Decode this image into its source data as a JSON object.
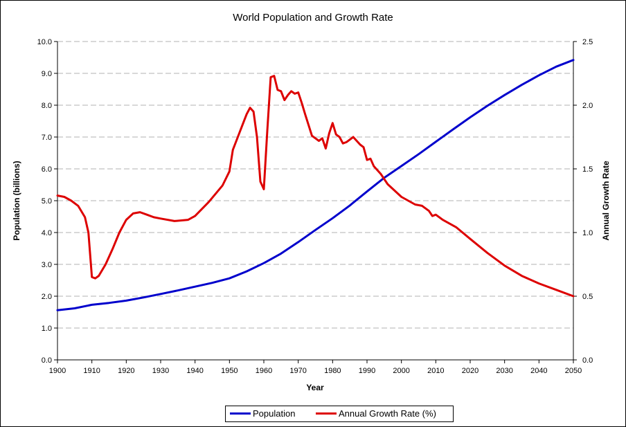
{
  "chart_data": {
    "type": "line",
    "title": "World Population and Growth Rate",
    "xlabel": "Year",
    "ylabel": "Population (billions)",
    "y2label": "Annual Growth Rate",
    "xlim": [
      1900,
      2050
    ],
    "ylim": [
      0,
      10
    ],
    "y2lim": [
      0,
      2.5
    ],
    "x_ticks": [
      "1900",
      "1910",
      "1920",
      "1930",
      "1940",
      "1950",
      "1960",
      "1970",
      "1980",
      "1990",
      "2000",
      "2010",
      "2020",
      "2030",
      "2040",
      "2050"
    ],
    "y_ticks": [
      "0.0",
      "1.0",
      "2.0",
      "3.0",
      "4.0",
      "5.0",
      "6.0",
      "7.0",
      "8.0",
      "9.0",
      "10.0"
    ],
    "y2_ticks": [
      "0.0",
      "0.5",
      "1.0",
      "1.5",
      "2.0",
      "2.5"
    ],
    "grid": "horizontal dashed",
    "legend_position": "bottom",
    "series": [
      {
        "name": "Population",
        "axis": "left",
        "color": "#0000cc",
        "x": [
          1900,
          1905,
          1910,
          1915,
          1920,
          1925,
          1930,
          1935,
          1940,
          1945,
          1950,
          1955,
          1960,
          1965,
          1970,
          1975,
          1980,
          1985,
          1990,
          1995,
          2000,
          2005,
          2010,
          2015,
          2020,
          2025,
          2030,
          2035,
          2040,
          2045,
          2050
        ],
        "values": [
          1.56,
          1.62,
          1.73,
          1.79,
          1.86,
          1.96,
          2.07,
          2.18,
          2.3,
          2.42,
          2.56,
          2.78,
          3.04,
          3.34,
          3.7,
          4.08,
          4.45,
          4.85,
          5.29,
          5.72,
          6.09,
          6.46,
          6.85,
          7.24,
          7.62,
          7.98,
          8.32,
          8.64,
          8.94,
          9.21,
          9.42
        ]
      },
      {
        "name": "Annual Growth Rate (%)",
        "axis": "right",
        "color": "#dd0000",
        "x": [
          1900,
          1902,
          1904,
          1906,
          1908,
          1909,
          1910,
          1911,
          1912,
          1914,
          1916,
          1918,
          1920,
          1922,
          1924,
          1926,
          1928,
          1930,
          1934,
          1938,
          1940,
          1944,
          1948,
          1950,
          1951,
          1952,
          1954,
          1955,
          1956,
          1957,
          1958,
          1959,
          1960,
          1961,
          1962,
          1963,
          1964,
          1965,
          1966,
          1967,
          1968,
          1969,
          1970,
          1971,
          1972,
          1974,
          1976,
          1977,
          1978,
          1979,
          1980,
          1981,
          1982,
          1983,
          1984,
          1986,
          1988,
          1989,
          1990,
          1991,
          1992,
          1994,
          1996,
          2000,
          2004,
          2006,
          2008,
          2009,
          2010,
          2012,
          2014,
          2016,
          2020,
          2025,
          2030,
          2035,
          2040,
          2045,
          2050
        ],
        "values": [
          1.29,
          1.28,
          1.25,
          1.21,
          1.12,
          1.0,
          0.65,
          0.64,
          0.66,
          0.75,
          0.87,
          1.0,
          1.1,
          1.15,
          1.16,
          1.14,
          1.12,
          1.11,
          1.09,
          1.1,
          1.13,
          1.24,
          1.37,
          1.48,
          1.65,
          1.72,
          1.86,
          1.93,
          1.98,
          1.95,
          1.75,
          1.4,
          1.34,
          1.8,
          2.22,
          2.23,
          2.12,
          2.11,
          2.04,
          2.08,
          2.11,
          2.09,
          2.1,
          2.02,
          1.93,
          1.76,
          1.72,
          1.74,
          1.66,
          1.78,
          1.86,
          1.77,
          1.75,
          1.7,
          1.71,
          1.75,
          1.69,
          1.67,
          1.57,
          1.58,
          1.52,
          1.46,
          1.38,
          1.28,
          1.22,
          1.21,
          1.17,
          1.13,
          1.14,
          1.1,
          1.07,
          1.04,
          0.95,
          0.84,
          0.74,
          0.66,
          0.6,
          0.55,
          0.5
        ]
      }
    ]
  }
}
